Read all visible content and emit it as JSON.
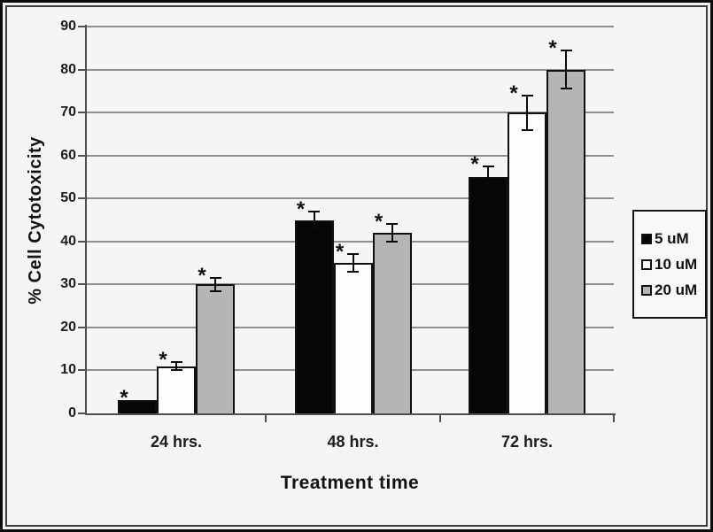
{
  "figure": {
    "background": "#f5f5f3",
    "frame_color": "#0b0b0b",
    "gridline_color": "#8f8f8f",
    "axis_color": "#4f4f4f"
  },
  "chart_data": {
    "type": "bar",
    "title": "",
    "xlabel": "Treatment time",
    "ylabel": "% Cell Cytotoxicity",
    "categories": [
      "24 hrs.",
      "48 hrs.",
      "72 hrs."
    ],
    "series": [
      {
        "name": "5 uM",
        "color": "#060606",
        "values": [
          3,
          45,
          55
        ],
        "errors": [
          0,
          2,
          2.5
        ],
        "significant": [
          true,
          true,
          true
        ]
      },
      {
        "name": "10 uM",
        "color": "#fdfdfd",
        "values": [
          11,
          35,
          70
        ],
        "errors": [
          1,
          2,
          4
        ],
        "significant": [
          true,
          true,
          true
        ]
      },
      {
        "name": "20 uM",
        "color": "#b5b5b5",
        "values": [
          30,
          42,
          80
        ],
        "errors": [
          1.5,
          2,
          4.5
        ],
        "significant": [
          true,
          true,
          true
        ]
      }
    ],
    "ylim": [
      0,
      90
    ],
    "yticks": [
      0,
      10,
      20,
      30,
      40,
      50,
      60,
      70,
      80,
      90
    ],
    "grid": true,
    "legend_position": "right",
    "significance_marker": "*"
  }
}
